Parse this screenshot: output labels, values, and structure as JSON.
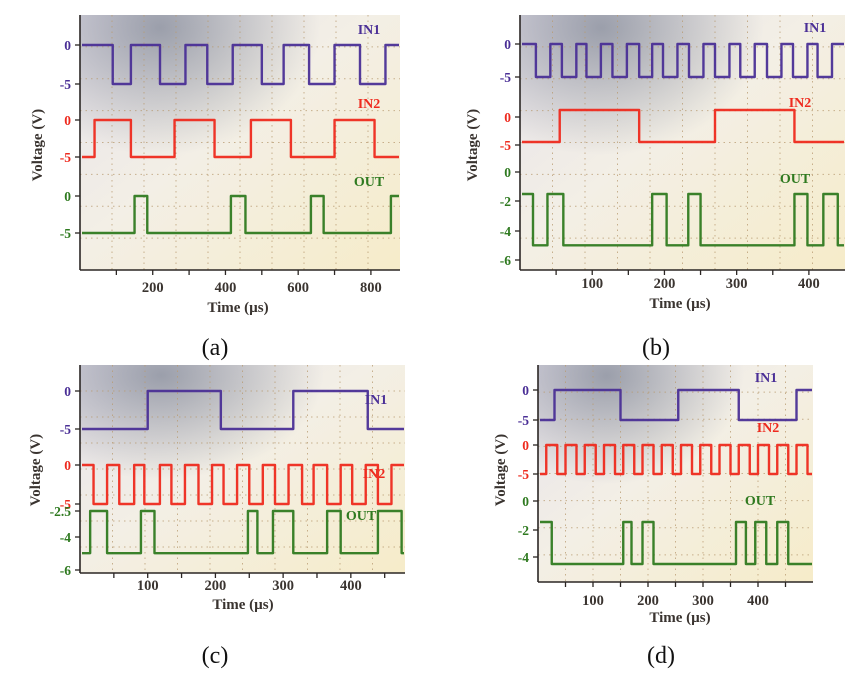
{
  "figure": {
    "captions": [
      "(a)",
      "(b)",
      "(c)",
      "(d)"
    ]
  },
  "colors": {
    "in1": "#4a2f96",
    "in2": "#ee2a1e",
    "out": "#2f7a20",
    "axis_text": "#3a3430"
  },
  "chart_data": [
    {
      "panel": "a",
      "type": "line",
      "xlabel": "Time (µs)",
      "ylabel": "Voltage (V)",
      "xlim": [
        0,
        880
      ],
      "xticks": [
        200,
        400,
        600,
        800
      ],
      "y_tick_labels": [
        {
          "label": "0",
          "trace": "IN1"
        },
        {
          "label": "-5",
          "trace": "IN1"
        },
        {
          "label": "0",
          "trace": "IN2"
        },
        {
          "label": "-5",
          "trace": "IN2"
        },
        {
          "label": "0",
          "trace": "OUT"
        },
        {
          "label": "-5",
          "trace": "OUT"
        }
      ],
      "series": [
        {
          "name": "IN1",
          "high": 0,
          "low": -5,
          "initial": "high",
          "transitions": [
            90,
            140,
            220,
            290,
            350,
            420,
            500,
            560,
            630,
            700,
            770,
            840
          ]
        },
        {
          "name": "IN2",
          "high": 0,
          "low": -5,
          "initial": "low",
          "transitions": [
            40,
            140,
            260,
            370,
            470,
            580,
            700,
            810
          ]
        },
        {
          "name": "OUT",
          "high": 0,
          "low": -5,
          "initial": "low",
          "transitions": [
            150,
            185,
            415,
            455,
            635,
            670,
            855
          ]
        }
      ]
    },
    {
      "panel": "b",
      "type": "line",
      "xlabel": "Time (µs)",
      "ylabel": "Voltage (V)",
      "xlim": [
        0,
        450
      ],
      "xticks": [
        100,
        200,
        300,
        400
      ],
      "y_tick_labels": [
        {
          "label": "0",
          "trace": "IN1"
        },
        {
          "label": "-5",
          "trace": "IN1"
        },
        {
          "label": "0",
          "trace": "IN2"
        },
        {
          "label": "-5",
          "trace": "IN2"
        },
        {
          "label": "0",
          "trace": "OUT"
        },
        {
          "label": "-2",
          "trace": "OUT"
        },
        {
          "label": "-4",
          "trace": "OUT"
        },
        {
          "label": "-6",
          "trace": "OUT"
        }
      ],
      "series": [
        {
          "name": "IN1",
          "high": 0,
          "low": -5,
          "initial": "high",
          "transitions": [
            22,
            42,
            58,
            78,
            92,
            112,
            128,
            148,
            165,
            183,
            198,
            218,
            234,
            254,
            270,
            290,
            305,
            325,
            342,
            362,
            378,
            398,
            412,
            432
          ]
        },
        {
          "name": "IN2",
          "high": 0,
          "low": -5,
          "initial": "low",
          "transitions": [
            55,
            165,
            270,
            380
          ]
        },
        {
          "name": "OUT",
          "high": -1.5,
          "low": -5,
          "initial": "high",
          "transitions": [
            18,
            38,
            60,
            183,
            203,
            233,
            250,
            380,
            398,
            420,
            440
          ]
        }
      ]
    },
    {
      "panel": "c",
      "type": "line",
      "xlabel": "Time (µs)",
      "ylabel": "Voltage (V)",
      "xlim": [
        0,
        480
      ],
      "xticks": [
        100,
        200,
        300,
        400
      ],
      "y_tick_labels": [
        {
          "label": "0",
          "trace": "IN1"
        },
        {
          "label": "-5",
          "trace": "IN1"
        },
        {
          "label": "0",
          "trace": "IN2"
        },
        {
          "label": "-5",
          "trace": "IN2"
        },
        {
          "label": "-2.5",
          "trace": "OUT"
        },
        {
          "label": "-4",
          "trace": "OUT"
        },
        {
          "label": "-6",
          "trace": "OUT"
        }
      ],
      "series": [
        {
          "name": "IN1",
          "high": 0,
          "low": -5,
          "initial": "low",
          "transitions": [
            100,
            208,
            315,
            425
          ]
        },
        {
          "name": "IN2",
          "high": 0,
          "low": -5,
          "initial": "high",
          "transitions": [
            20,
            40,
            58,
            80,
            95,
            118,
            135,
            155,
            175,
            195,
            212,
            232,
            250,
            270,
            288,
            308,
            328,
            345,
            365,
            385,
            402,
            422,
            440,
            460
          ]
        },
        {
          "name": "OUT",
          "high": -2.5,
          "low": -5,
          "initial": "low",
          "transitions": [
            15,
            40,
            90,
            110,
            248,
            262,
            285,
            315,
            365,
            385,
            440,
            475
          ]
        }
      ]
    },
    {
      "panel": "d",
      "type": "line",
      "xlabel": "Time (µs)",
      "ylabel": "Voltage (V)",
      "xlim": [
        0,
        500
      ],
      "xticks": [
        100,
        200,
        300,
        400
      ],
      "y_tick_labels": [
        {
          "label": "0",
          "trace": "IN1"
        },
        {
          "label": "-5",
          "trace": "IN1"
        },
        {
          "label": "0",
          "trace": "IN2"
        },
        {
          "label": "-5",
          "trace": "IN2"
        },
        {
          "label": "0",
          "trace": "OUT"
        },
        {
          "label": "-2",
          "trace": "OUT"
        },
        {
          "label": "-4",
          "trace": "OUT"
        }
      ],
      "series": [
        {
          "name": "IN1",
          "high": 0,
          "low": -5,
          "initial": "low",
          "transitions": [
            30,
            150,
            255,
            365,
            470
          ]
        },
        {
          "name": "IN2",
          "high": 0,
          "low": -5,
          "initial": "low",
          "transitions": [
            15,
            35,
            50,
            70,
            85,
            105,
            120,
            140,
            155,
            175,
            190,
            210,
            225,
            245,
            260,
            280,
            295,
            315,
            330,
            350,
            365,
            385,
            400,
            420,
            435,
            455,
            470,
            490
          ]
        },
        {
          "name": "OUT",
          "high": -1.5,
          "low": -4.5,
          "initial": "high",
          "transitions": [
            25,
            155,
            170,
            190,
            210,
            360,
            378,
            395,
            415,
            435,
            455
          ]
        }
      ]
    }
  ]
}
